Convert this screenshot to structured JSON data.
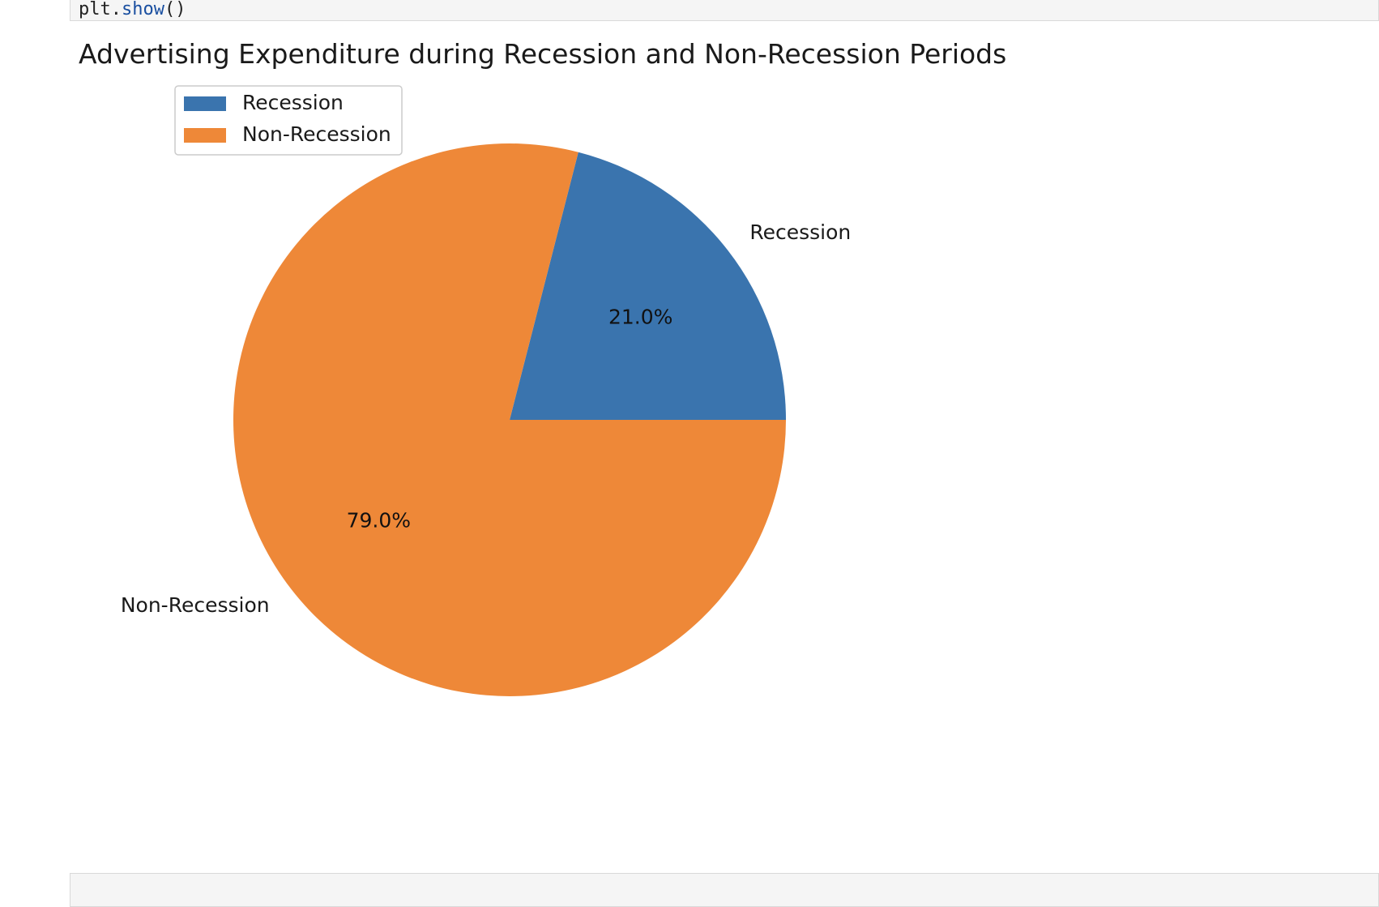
{
  "notebook": {
    "top_cell_code": "plt.show()"
  },
  "chart_data": {
    "type": "pie",
    "title": "Advertising Expenditure during Recession and Non-Recession Periods",
    "labels": [
      "Recession",
      "Non-Recession"
    ],
    "values": [
      21.0,
      79.0
    ],
    "percent_labels": [
      "21.0%",
      "79.0%"
    ],
    "colors": [
      "#3a74ae",
      "#ee8838"
    ],
    "start_angle_deg": 0,
    "direction": "counterclockwise",
    "legend": {
      "placement": "upper-left",
      "entries": [
        "Recession",
        "Non-Recession"
      ]
    }
  }
}
